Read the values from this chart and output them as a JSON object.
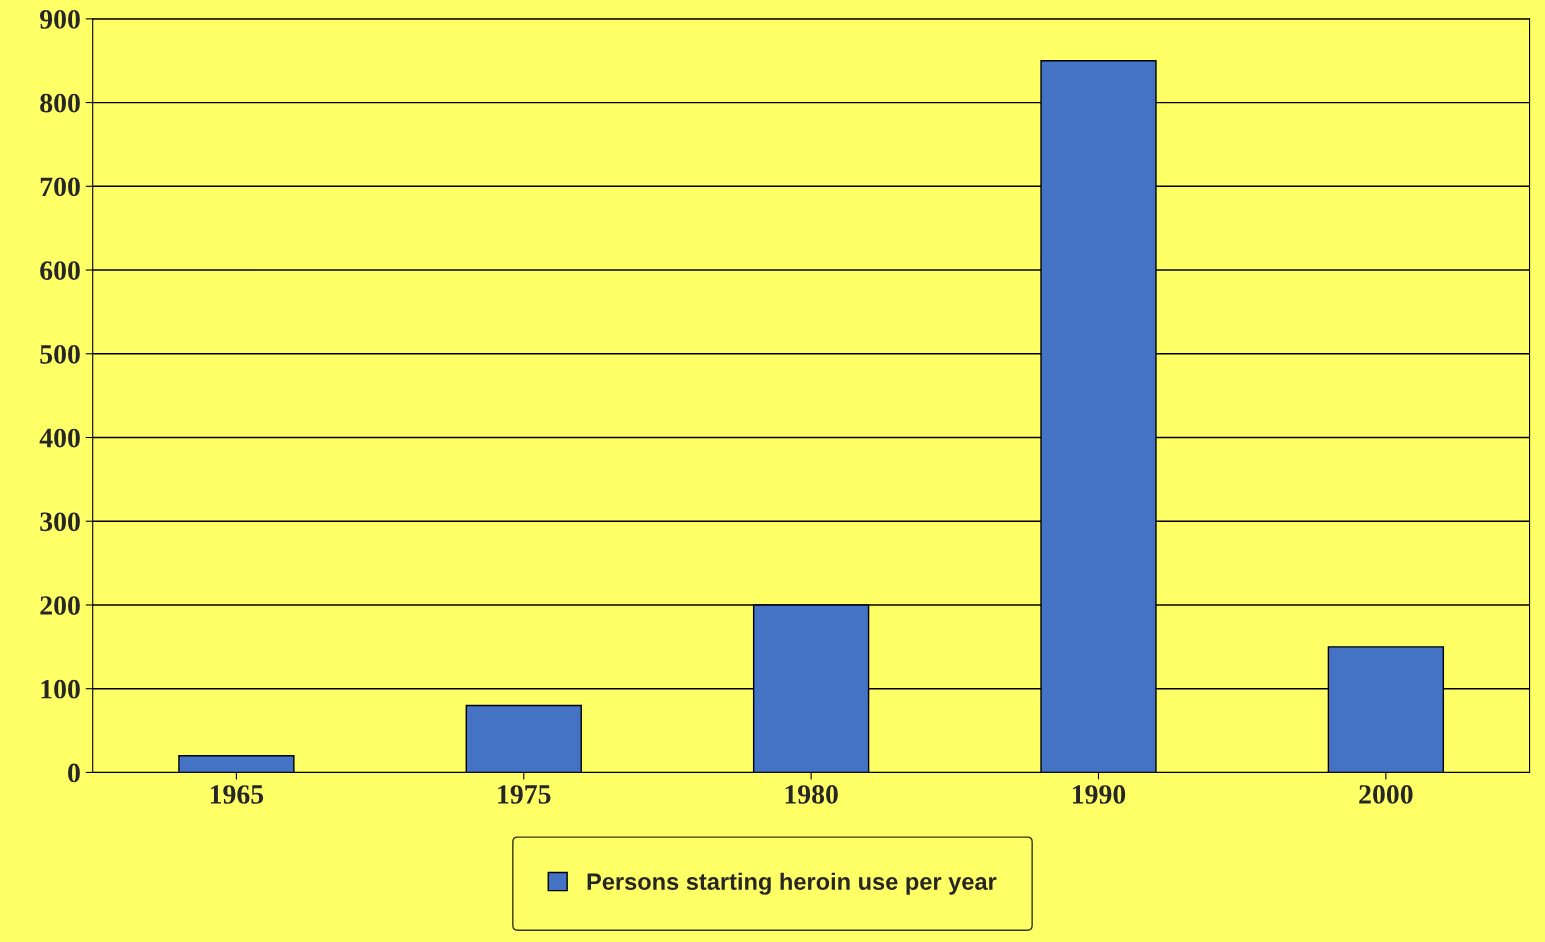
{
  "chart_data": {
    "type": "bar",
    "categories": [
      "1965",
      "1975",
      "1980",
      "1990",
      "2000"
    ],
    "series": [
      {
        "name": "Persons starting heroin use per year",
        "color": "#4472c4",
        "values": [
          20,
          80,
          200,
          850,
          150
        ]
      }
    ],
    "ylim": [
      0,
      900
    ],
    "yticks": [
      0,
      100,
      200,
      300,
      400,
      500,
      600,
      700,
      800,
      900
    ],
    "grid": "y",
    "legend": "bottom"
  }
}
